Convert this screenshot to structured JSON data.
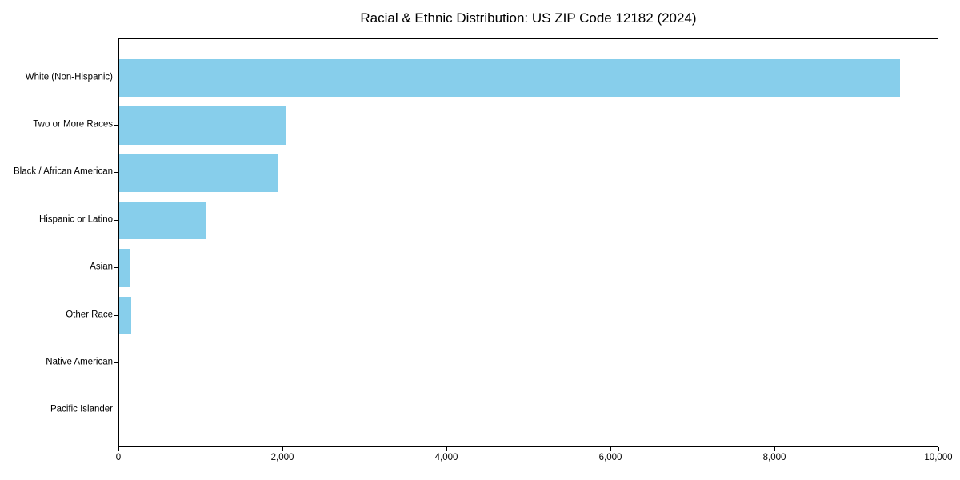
{
  "chart_data": {
    "type": "bar",
    "orientation": "horizontal",
    "title": "Racial & Ethnic Distribution: US ZIP Code 12182 (2024)",
    "categories": [
      "White (Non-Hispanic)",
      "Two or More Races",
      "Black / African American",
      "Hispanic or Latino",
      "Asian",
      "Other Race",
      "Native American",
      "Pacific Islander"
    ],
    "values": [
      9525,
      2025,
      1940,
      1060,
      130,
      145,
      0,
      0
    ],
    "xlabel": "",
    "ylabel": "",
    "xlim": [
      0,
      10000
    ],
    "x_ticks": [
      0,
      2000,
      4000,
      6000,
      8000,
      10000
    ],
    "x_tick_labels": [
      "0",
      "2,000",
      "4,000",
      "6,000",
      "8,000",
      "10,000"
    ],
    "bar_color": "#87CEEB",
    "axis_color": "#000000",
    "background_color": "#ffffff",
    "grid": false,
    "legend": null
  }
}
